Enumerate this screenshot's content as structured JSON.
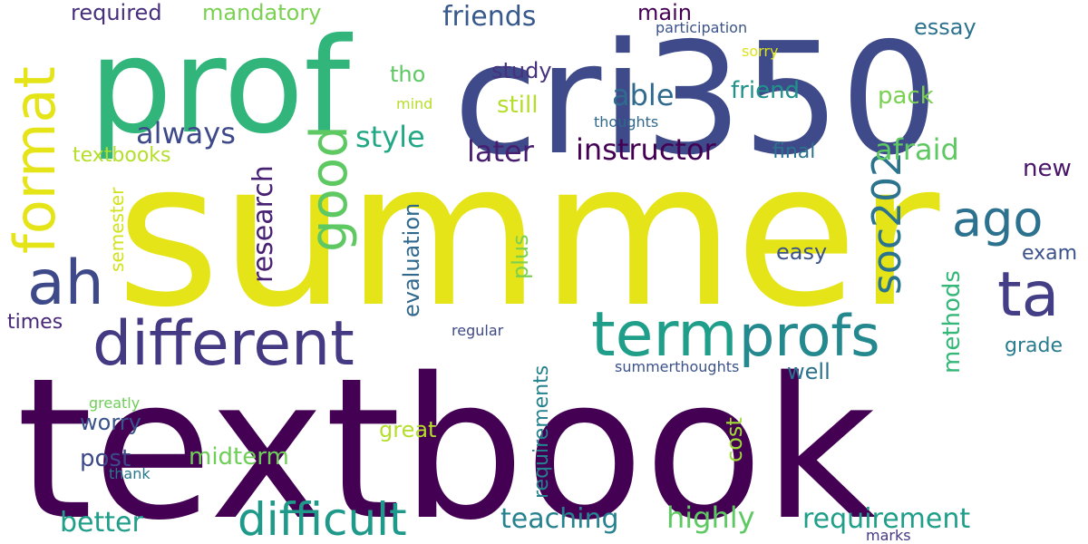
{
  "words": [
    {
      "text": "summer",
      "color": "#e5e419"
    },
    {
      "text": "textbook",
      "color": "#440154"
    },
    {
      "text": "cri350",
      "color": "#3e4a89"
    },
    {
      "text": "prof",
      "color": "#31b57b"
    },
    {
      "text": "different",
      "color": "#443983"
    },
    {
      "text": "term",
      "color": "#1f9e89"
    },
    {
      "text": "profs",
      "color": "#23898e"
    },
    {
      "text": "difficult",
      "color": "#1f9a8a"
    },
    {
      "text": "format",
      "color": "#e5e419"
    },
    {
      "text": "ah",
      "color": "#3e4989"
    },
    {
      "text": "ta",
      "color": "#433e85"
    },
    {
      "text": "good",
      "color": "#5ec962"
    },
    {
      "text": "ago",
      "color": "#2c728e"
    },
    {
      "text": "soc202",
      "color": "#2c738e"
    },
    {
      "text": "friends",
      "color": "#38598c"
    },
    {
      "text": "required",
      "color": "#472f7d"
    },
    {
      "text": "mandatory",
      "color": "#7ad151"
    },
    {
      "text": "main",
      "color": "#440154"
    },
    {
      "text": "participation",
      "color": "#3b528b"
    },
    {
      "text": "essay",
      "color": "#2c728e"
    },
    {
      "text": "sorry",
      "color": "#dde318"
    },
    {
      "text": "tho",
      "color": "#5ec962"
    },
    {
      "text": "study",
      "color": "#46327e"
    },
    {
      "text": "mind",
      "color": "#b5de2b"
    },
    {
      "text": "still",
      "color": "#b5de2b"
    },
    {
      "text": "able",
      "color": "#306a8e"
    },
    {
      "text": "friend",
      "color": "#21918c"
    },
    {
      "text": "pack",
      "color": "#7ad151"
    },
    {
      "text": "thoughts",
      "color": "#31688e"
    },
    {
      "text": "always",
      "color": "#3e4989"
    },
    {
      "text": "style",
      "color": "#22a884"
    },
    {
      "text": "later",
      "color": "#481f70"
    },
    {
      "text": "instructor",
      "color": "#440154"
    },
    {
      "text": "final",
      "color": "#2c728e"
    },
    {
      "text": "afraid",
      "color": "#5ec962"
    },
    {
      "text": "textbooks",
      "color": "#b5de2b"
    },
    {
      "text": "new",
      "color": "#481668"
    },
    {
      "text": "research",
      "color": "#482173"
    },
    {
      "text": "semester",
      "color": "#d2e21b"
    },
    {
      "text": "evaluation",
      "color": "#31688e"
    },
    {
      "text": "plus",
      "color": "#7ad151"
    },
    {
      "text": "easy",
      "color": "#3b528b"
    },
    {
      "text": "exam",
      "color": "#3b528b"
    },
    {
      "text": "methods",
      "color": "#35b779"
    },
    {
      "text": "times",
      "color": "#482878"
    },
    {
      "text": "regular",
      "color": "#3e4989"
    },
    {
      "text": "requirements",
      "color": "#26828e"
    },
    {
      "text": "grade",
      "color": "#287c8e"
    },
    {
      "text": "well",
      "color": "#2c728e"
    },
    {
      "text": "summerthoughts",
      "color": "#3b528b"
    },
    {
      "text": "greatly",
      "color": "#6ece58"
    },
    {
      "text": "worry",
      "color": "#3b528b"
    },
    {
      "text": "great",
      "color": "#b5de2b"
    },
    {
      "text": "cost",
      "color": "#a0da39"
    },
    {
      "text": "post",
      "color": "#3e4989"
    },
    {
      "text": "midterm",
      "color": "#6ece58"
    },
    {
      "text": "thank",
      "color": "#2a788e"
    },
    {
      "text": "better",
      "color": "#1f9e89"
    },
    {
      "text": "teaching",
      "color": "#26828e"
    },
    {
      "text": "highly",
      "color": "#5ec962"
    },
    {
      "text": "requirement",
      "color": "#1f9e89"
    },
    {
      "text": "marks",
      "color": "#443983"
    }
  ]
}
